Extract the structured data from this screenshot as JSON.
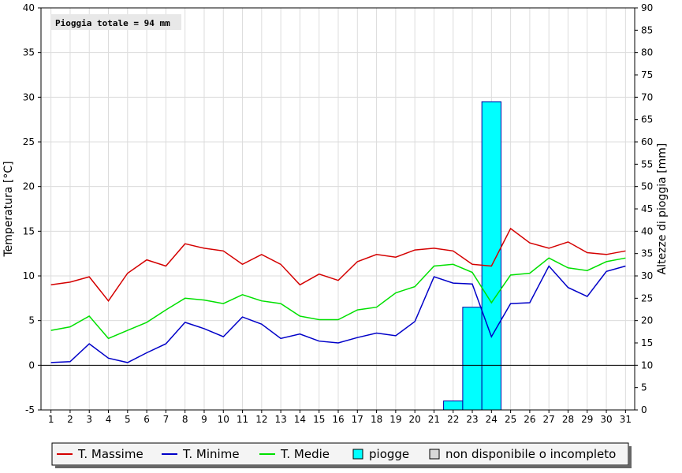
{
  "chart_data": {
    "type": "bar+line",
    "annotation": "Pioggia totale = 94 mm",
    "y_left_label": "Temperatura [°C]",
    "y_right_label": "Altezze di pioggia [mm]",
    "y_left_range": [
      -5,
      40
    ],
    "y_left_ticks": [
      "-5",
      "0",
      "5",
      "10",
      "15",
      "20",
      "25",
      "30",
      "35",
      "40"
    ],
    "y_right_range": [
      0,
      90
    ],
    "y_right_ticks": [
      "0",
      "5",
      "10",
      "15",
      "20",
      "25",
      "30",
      "35",
      "40",
      "45",
      "50",
      "55",
      "60",
      "65",
      "70",
      "75",
      "80",
      "85",
      "90"
    ],
    "x": [
      "1",
      "2",
      "3",
      "4",
      "5",
      "6",
      "7",
      "8",
      "9",
      "10",
      "11",
      "12",
      "13",
      "14",
      "15",
      "16",
      "17",
      "18",
      "19",
      "20",
      "21",
      "22",
      "23",
      "24",
      "25",
      "26",
      "27",
      "28",
      "29",
      "30",
      "31"
    ],
    "grid": true,
    "legend_position": "bottom",
    "series": [
      {
        "name": "T. Massime",
        "type": "line",
        "color": "#d40000",
        "values": [
          9.0,
          9.3,
          9.9,
          7.2,
          10.3,
          11.8,
          11.1,
          13.6,
          13.1,
          12.8,
          11.3,
          12.4,
          11.3,
          9.0,
          10.2,
          9.5,
          11.6,
          12.4,
          12.1,
          12.9,
          13.1,
          12.8,
          11.3,
          11.1,
          15.3,
          13.7,
          13.1,
          13.8,
          12.6,
          12.4,
          12.8
        ]
      },
      {
        "name": "T. Minime",
        "type": "line",
        "color": "#0000c8",
        "values": [
          0.3,
          0.4,
          2.4,
          0.8,
          0.3,
          1.4,
          2.4,
          4.8,
          4.1,
          3.2,
          5.4,
          4.6,
          3.0,
          3.5,
          2.7,
          2.5,
          3.1,
          3.6,
          3.3,
          4.9,
          9.9,
          9.2,
          9.1,
          3.2,
          6.9,
          7.0,
          11.1,
          8.7,
          7.7,
          10.5,
          11.1
        ]
      },
      {
        "name": "T. Medie",
        "type": "line",
        "color": "#00e000",
        "values": [
          3.9,
          4.3,
          5.5,
          3.0,
          3.9,
          4.8,
          6.2,
          7.5,
          7.3,
          6.9,
          7.9,
          7.2,
          6.9,
          5.5,
          5.1,
          5.1,
          6.2,
          6.5,
          8.1,
          8.8,
          11.1,
          11.3,
          10.4,
          7.0,
          10.1,
          10.3,
          12.0,
          10.9,
          10.6,
          11.6,
          12.0
        ]
      },
      {
        "name": "piogge",
        "type": "bar",
        "axis": "right",
        "color": "#00ffff",
        "values": [
          0,
          0,
          0,
          0,
          0,
          0,
          0,
          0,
          0,
          0,
          0,
          0,
          0,
          0,
          0,
          0,
          0,
          0,
          0,
          0,
          0,
          2,
          23,
          69,
          0,
          0,
          0,
          0,
          0,
          0,
          0
        ]
      }
    ],
    "legend": [
      {
        "label": "T. Massime",
        "kind": "line",
        "color": "#d40000"
      },
      {
        "label": "T. Minime",
        "kind": "line",
        "color": "#0000c8"
      },
      {
        "label": "T. Medie",
        "kind": "line",
        "color": "#00e000"
      },
      {
        "label": "piogge",
        "kind": "box",
        "color": "#00ffff"
      },
      {
        "label": "non disponibile o incompleto",
        "kind": "box",
        "color": "#d8d8d8"
      }
    ]
  }
}
